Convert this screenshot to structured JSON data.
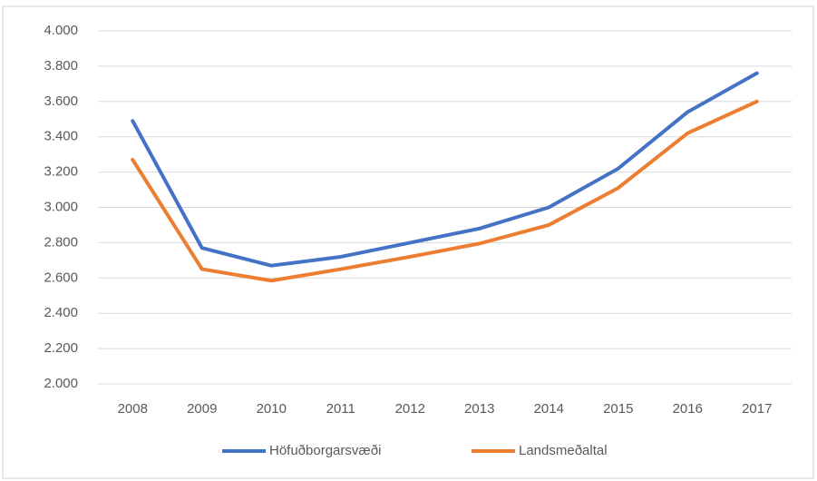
{
  "chart_data": {
    "type": "line",
    "categories": [
      "2008",
      "2009",
      "2010",
      "2011",
      "2012",
      "2013",
      "2014",
      "2015",
      "2016",
      "2017"
    ],
    "series": [
      {
        "name": "Höfuðborgarsvæði",
        "color": "#4472c4",
        "values": [
          3490,
          2770,
          2670,
          2720,
          2800,
          2880,
          3000,
          3220,
          3540,
          3760
        ]
      },
      {
        "name": "Landsmeðaltal",
        "color": "#ed7d31",
        "values": [
          3270,
          2650,
          2585,
          2650,
          2720,
          2795,
          2900,
          3110,
          3420,
          3600
        ]
      }
    ],
    "ylim": [
      2000,
      4000
    ],
    "yticks": [
      {
        "value": 2000,
        "label": "2.000"
      },
      {
        "value": 2200,
        "label": "2.200"
      },
      {
        "value": 2400,
        "label": "2.400"
      },
      {
        "value": 2600,
        "label": "2.600"
      },
      {
        "value": 2800,
        "label": "2.800"
      },
      {
        "value": 3000,
        "label": "3.000"
      },
      {
        "value": 3200,
        "label": "3.200"
      },
      {
        "value": 3400,
        "label": "3.400"
      },
      {
        "value": 3600,
        "label": "3.600"
      },
      {
        "value": 3800,
        "label": "3.800"
      },
      {
        "value": 4000,
        "label": "4.000"
      }
    ],
    "grid": true,
    "legend": "bottom"
  }
}
